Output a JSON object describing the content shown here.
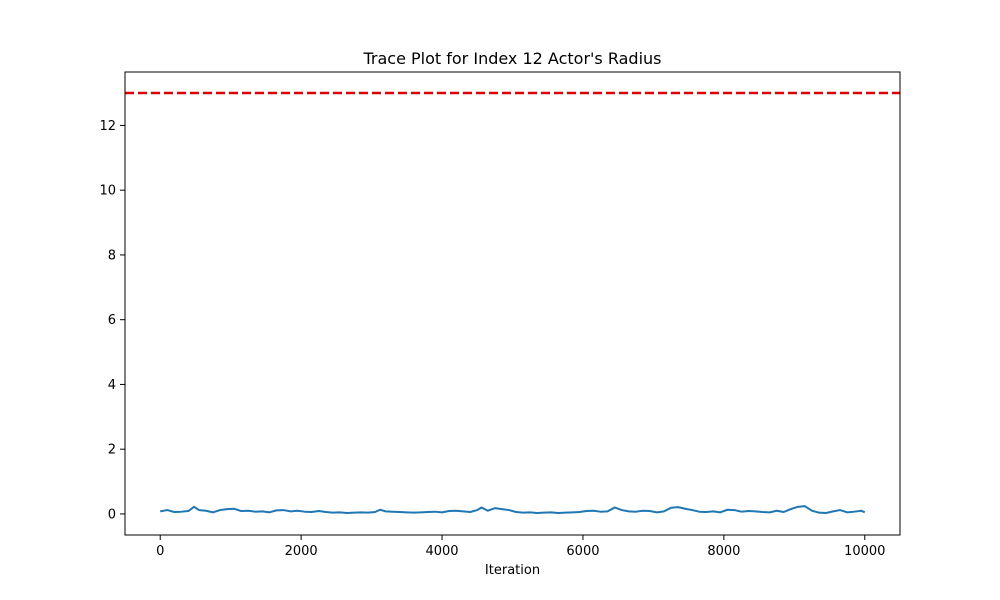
{
  "chart_data": {
    "type": "line",
    "title": "Trace Plot for Index 12 Actor's Radius",
    "xlabel": "Iteration",
    "ylabel": "",
    "xlim": [
      -500,
      10500
    ],
    "ylim": [
      -0.65,
      13.65
    ],
    "x_ticks": [
      0,
      2000,
      4000,
      6000,
      8000,
      10000
    ],
    "y_ticks": [
      0,
      2,
      4,
      6,
      8,
      10,
      12
    ],
    "grid": false,
    "legend": "none",
    "series": [
      {
        "color": "#1f77b4",
        "x": [
          0,
          100,
          200,
          300,
          400,
          480,
          550,
          650,
          750,
          850,
          950,
          1050,
          1150,
          1250,
          1350,
          1450,
          1550,
          1650,
          1750,
          1850,
          1950,
          2050,
          2150,
          2250,
          2350,
          2450,
          2550,
          2650,
          2750,
          2850,
          2950,
          3050,
          3120,
          3200,
          3300,
          3400,
          3500,
          3600,
          3700,
          3800,
          3900,
          4000,
          4100,
          4200,
          4300,
          4400,
          4500,
          4560,
          4650,
          4750,
          4850,
          4950,
          5050,
          5150,
          5250,
          5350,
          5450,
          5550,
          5650,
          5750,
          5850,
          5950,
          6050,
          6150,
          6250,
          6350,
          6450,
          6550,
          6650,
          6750,
          6850,
          6950,
          7050,
          7150,
          7250,
          7350,
          7450,
          7550,
          7650,
          7750,
          7850,
          7950,
          8050,
          8150,
          8250,
          8350,
          8450,
          8550,
          8650,
          8750,
          8850,
          8950,
          9050,
          9150,
          9250,
          9350,
          9450,
          9550,
          9650,
          9750,
          9850,
          9950,
          10000
        ],
        "values": [
          0.08,
          0.12,
          0.06,
          0.07,
          0.09,
          0.22,
          0.12,
          0.1,
          0.05,
          0.12,
          0.15,
          0.16,
          0.09,
          0.1,
          0.07,
          0.08,
          0.05,
          0.11,
          0.12,
          0.08,
          0.1,
          0.07,
          0.06,
          0.09,
          0.06,
          0.04,
          0.05,
          0.03,
          0.04,
          0.05,
          0.04,
          0.06,
          0.13,
          0.08,
          0.07,
          0.06,
          0.05,
          0.04,
          0.05,
          0.06,
          0.07,
          0.05,
          0.09,
          0.1,
          0.08,
          0.06,
          0.12,
          0.2,
          0.1,
          0.18,
          0.15,
          0.12,
          0.06,
          0.04,
          0.05,
          0.03,
          0.04,
          0.05,
          0.03,
          0.04,
          0.05,
          0.06,
          0.09,
          0.1,
          0.07,
          0.08,
          0.2,
          0.12,
          0.08,
          0.07,
          0.1,
          0.09,
          0.05,
          0.08,
          0.19,
          0.21,
          0.16,
          0.12,
          0.07,
          0.06,
          0.08,
          0.05,
          0.13,
          0.12,
          0.07,
          0.09,
          0.08,
          0.06,
          0.05,
          0.1,
          0.06,
          0.15,
          0.22,
          0.24,
          0.1,
          0.04,
          0.03,
          0.08,
          0.12,
          0.05,
          0.07,
          0.1,
          0.05
        ]
      }
    ],
    "reference_line": {
      "y": 13.0,
      "color": "#e00000",
      "style": "dashed"
    }
  }
}
